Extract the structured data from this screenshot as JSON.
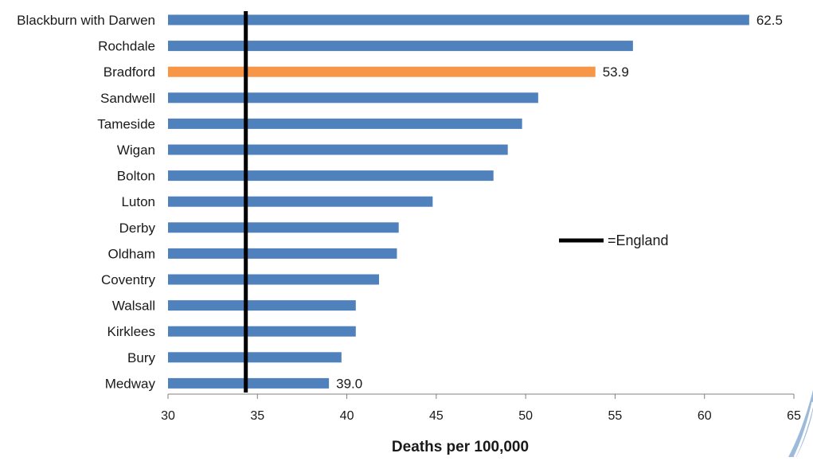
{
  "chart_data": {
    "type": "bar",
    "orientation": "horizontal",
    "categories": [
      "Blackburn with Darwen",
      "Rochdale",
      "Bradford",
      "Sandwell",
      "Tameside",
      "Wigan",
      "Bolton",
      "Luton",
      "Derby",
      "Oldham",
      "Coventry",
      "Walsall",
      "Kirklees",
      "Bury",
      "Medway"
    ],
    "values": [
      62.5,
      56.0,
      53.9,
      50.7,
      49.8,
      49.0,
      48.2,
      44.8,
      42.9,
      42.8,
      41.8,
      40.5,
      40.5,
      39.7,
      39.0
    ],
    "data_labels": {
      "Blackburn with Darwen": "62.5",
      "Bradford": "53.9",
      "Medway": "39.0"
    },
    "highlight": "Bradford",
    "xlim": [
      30,
      65
    ],
    "xticks": [
      "30",
      "35",
      "40",
      "45",
      "50",
      "55",
      "60",
      "65"
    ],
    "xlabel": "Deaths per 100,000",
    "reference_line": {
      "label": "=England",
      "value": 34.35
    },
    "colors": {
      "bar": "#4f81bd",
      "highlight": "#f79646",
      "reference": "#000000",
      "axis": "#808080",
      "corner_accent": "#4f81bd"
    },
    "grid": false,
    "legend_position": "right-middle"
  }
}
